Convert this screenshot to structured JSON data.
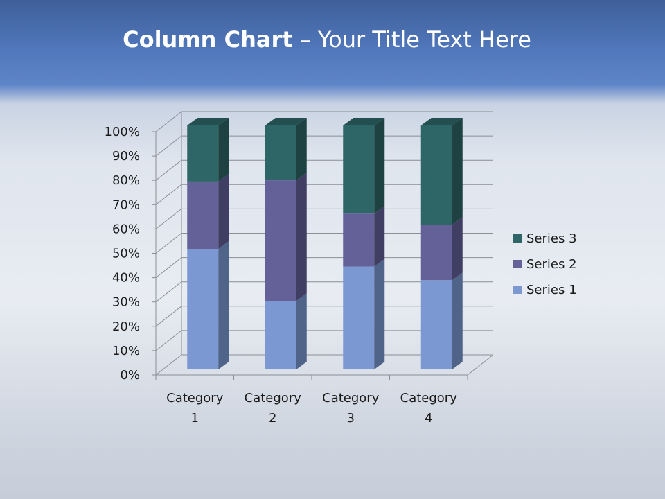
{
  "slide": {
    "title_bold": "Column Chart",
    "title_rest": " – Your Title Text Here"
  },
  "chart_data": {
    "type": "bar",
    "subtype": "3d-100%-stacked-column",
    "categories": [
      "Category 1",
      "Category 2",
      "Category 3",
      "Category 4"
    ],
    "series": [
      {
        "name": "Series 1",
        "values": [
          4.3,
          2.5,
          3.5,
          4.5
        ],
        "color": "#7b98d2"
      },
      {
        "name": "Series 2",
        "values": [
          2.4,
          4.4,
          1.8,
          2.8
        ],
        "color": "#636198"
      },
      {
        "name": "Series 3",
        "values": [
          2,
          2,
          3,
          5
        ],
        "color": "#2e6566"
      }
    ],
    "yticks": [
      "0%",
      "10%",
      "20%",
      "30%",
      "40%",
      "50%",
      "60%",
      "70%",
      "80%",
      "90%",
      "100%"
    ],
    "ylim": [
      0,
      100
    ],
    "grid": true,
    "legend": "right"
  }
}
